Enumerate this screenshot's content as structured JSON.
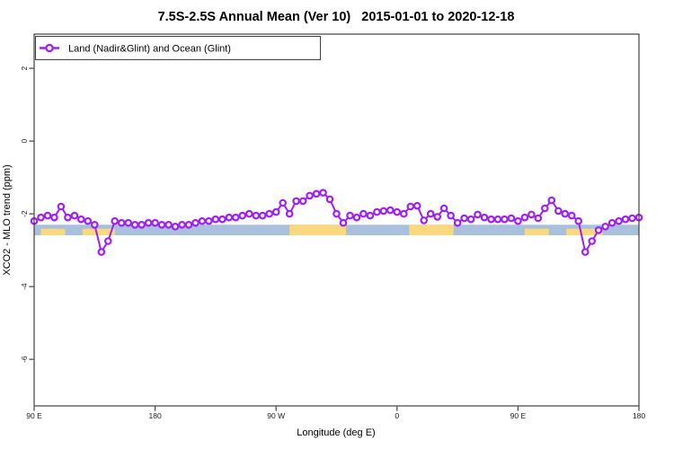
{
  "window": {
    "background": "#ffffff"
  },
  "chart_data": {
    "type": "line",
    "title": "7.5S-2.5S Annual Mean (Ver 10)   2015-01-01 to 2020-12-18",
    "xlabel": "Longitude (deg E)",
    "ylabel": "XCO2 - MLO trend (ppm)",
    "legend": [
      "Land (Nadir&Glint) and Ocean (Glint)"
    ],
    "legend_position": "top-left",
    "grid": false,
    "xlim": [
      90,
      540
    ],
    "ylim": [
      -7.28,
      2.94
    ],
    "x_ticks": {
      "positions": [
        90,
        180,
        270,
        360,
        450,
        540
      ],
      "labels": [
        "90 E",
        "180",
        "90 W",
        "0",
        "90 E",
        "180"
      ]
    },
    "y_ticks": {
      "positions": [
        2,
        0,
        -2,
        -4,
        -6
      ],
      "labels": [
        "2",
        "0",
        "-2",
        "-4",
        "-6"
      ]
    },
    "axis_color": "#404040",
    "series": [
      {
        "name": "Land (Nadir&Glint) and Ocean (Glint)",
        "color": "#A020F0",
        "marker": "open-circle",
        "marker_fill": "#ffffff",
        "x": [
          90,
          95,
          100,
          105,
          110,
          115,
          120,
          125,
          130,
          135,
          140,
          145,
          150,
          155,
          160,
          165,
          170,
          175,
          180,
          185,
          190,
          195,
          200,
          205,
          210,
          215,
          220,
          225,
          230,
          235,
          240,
          245,
          250,
          255,
          260,
          265,
          270,
          275,
          280,
          285,
          290,
          295,
          300,
          305,
          310,
          315,
          320,
          325,
          330,
          335,
          340,
          345,
          350,
          355,
          360,
          365,
          370,
          375,
          380,
          385,
          390,
          395,
          400,
          405,
          410,
          415,
          420,
          425,
          430,
          435,
          440,
          445,
          450,
          455,
          460,
          465,
          470,
          475,
          480,
          485,
          490,
          495,
          500,
          505,
          510,
          515,
          520,
          525,
          530,
          535,
          540
        ],
        "y": [
          -2.2,
          -2.1,
          -2.05,
          -2.1,
          -1.8,
          -2.1,
          -2.05,
          -2.15,
          -2.2,
          -2.3,
          -3.05,
          -2.75,
          -2.2,
          -2.25,
          -2.25,
          -2.3,
          -2.3,
          -2.25,
          -2.25,
          -2.3,
          -2.3,
          -2.35,
          -2.3,
          -2.3,
          -2.25,
          -2.2,
          -2.2,
          -2.15,
          -2.15,
          -2.1,
          -2.1,
          -2.05,
          -2.0,
          -2.05,
          -2.05,
          -2.0,
          -1.95,
          -1.7,
          -2.0,
          -1.65,
          -1.65,
          -1.5,
          -1.45,
          -1.42,
          -1.6,
          -2.0,
          -2.25,
          -2.05,
          -2.1,
          -2.0,
          -2.05,
          -1.95,
          -1.92,
          -1.9,
          -1.95,
          -2.0,
          -1.8,
          -1.78,
          -2.18,
          -2.0,
          -2.08,
          -1.85,
          -2.05,
          -2.25,
          -2.12,
          -2.15,
          -2.02,
          -2.1,
          -2.15,
          -2.15,
          -2.15,
          -2.12,
          -2.2,
          -2.1,
          -2.02,
          -2.12,
          -1.85,
          -1.63,
          -1.92,
          -2.0,
          -2.05,
          -2.2,
          -3.05,
          -2.75,
          -2.45,
          -2.35,
          -2.25,
          -2.2,
          -2.15,
          -2.12,
          -2.1
        ]
      }
    ],
    "map_band": {
      "description": "land/ocean strip along the latitude band",
      "y_top": -2.3,
      "y_bottom": -2.59,
      "ocean_color": "#A9C0DC",
      "land_color": "#FAD87E",
      "ocean_range": [
        90,
        540
      ],
      "land_patches": [
        {
          "from": 95,
          "to": 113,
          "style": "islands"
        },
        {
          "from": 126,
          "to": 150,
          "style": "islands"
        },
        {
          "from": 280,
          "to": 322,
          "style": "continent"
        },
        {
          "from": 369,
          "to": 402,
          "style": "continent"
        },
        {
          "from": 455,
          "to": 473,
          "style": "islands"
        },
        {
          "from": 486,
          "to": 513,
          "style": "islands"
        }
      ]
    }
  }
}
